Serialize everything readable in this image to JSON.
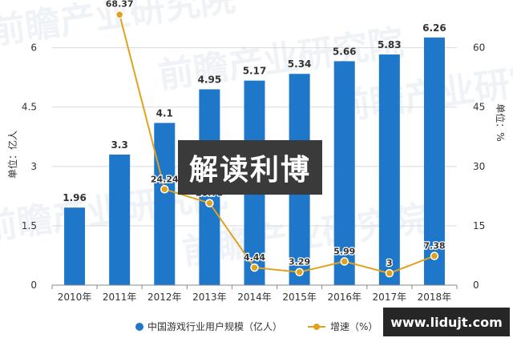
{
  "chart_data": {
    "type": "bar+line",
    "categories": [
      "2010年",
      "2011年",
      "2012年",
      "2013年",
      "2014年",
      "2015年",
      "2016年",
      "2017年",
      "2018年"
    ],
    "bars": {
      "name": "中国游戏行业用户规模（亿人）",
      "values": [
        1.96,
        3.3,
        4.1,
        4.95,
        5.17,
        5.34,
        5.66,
        5.83,
        6.26
      ],
      "labels": [
        "1.96",
        "3.3",
        "4.1",
        "4.95",
        "5.17",
        "5.34",
        "5.66",
        "5.83",
        "6.26"
      ],
      "color": "#1f77c9"
    },
    "line": {
      "name": "增速（%）",
      "values": [
        null,
        68.37,
        24.24,
        20.73,
        4.44,
        3.29,
        5.99,
        3,
        7.38
      ],
      "labels": [
        "",
        "68.37",
        "24.24",
        "20.73",
        "4.44",
        "3.29",
        "5.99",
        "3",
        "7.38"
      ],
      "color": "#e0a21b"
    },
    "ylabel_left": "单位：亿人",
    "ylabel_right": "单位：%",
    "ylim_left": [
      0,
      6.6
    ],
    "ylim_right": [
      0,
      66
    ],
    "yticks_left": [
      "0",
      "1.5",
      "3",
      "4.5",
      "6"
    ],
    "yticks_right": [
      "0",
      "15",
      "30",
      "45",
      "60"
    ],
    "legend_position": "bottom"
  },
  "watermark": "前瞻产业研究院",
  "overlay_title": "解读利博",
  "site_badge": "www.lidujt.com"
}
